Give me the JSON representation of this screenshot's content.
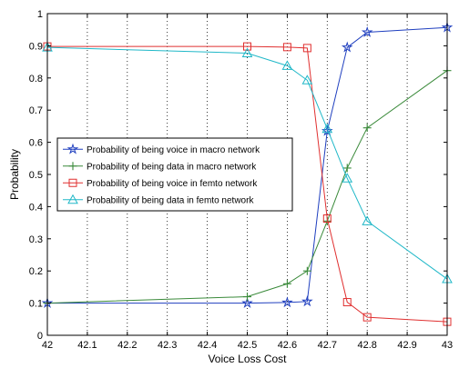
{
  "chart_data": {
    "type": "line",
    "xlabel": "Voice Loss Cost",
    "ylabel": "Probability",
    "xlim": [
      42,
      43
    ],
    "ylim": [
      0,
      1
    ],
    "xticks": [
      "42",
      "42.1",
      "42.2",
      "42.3",
      "42.4",
      "42.5",
      "42.6",
      "42.7",
      "42.8",
      "42.9",
      "43"
    ],
    "yticks": [
      "0",
      "0.1",
      "0.2",
      "0.3",
      "0.4",
      "0.5",
      "0.6",
      "0.7",
      "0.8",
      "0.9",
      "1"
    ],
    "grid": "vertical dotted",
    "legend_position": "center-left",
    "series": [
      {
        "name": "Probability of being voice in macro network",
        "color": "#1f3fbf",
        "marker": "star",
        "x": [
          42,
          42.5,
          42.6,
          42.65,
          42.7,
          42.75,
          42.8,
          43
        ],
        "y": [
          0.1,
          0.1,
          0.102,
          0.105,
          0.635,
          0.895,
          0.942,
          0.957
        ]
      },
      {
        "name": "Probability of being data in macro network",
        "color": "#3a8a3a",
        "marker": "plus",
        "x": [
          42,
          42.5,
          42.6,
          42.65,
          42.7,
          42.75,
          42.8,
          43
        ],
        "y": [
          0.1,
          0.12,
          0.16,
          0.2,
          0.355,
          0.52,
          0.645,
          0.823
        ]
      },
      {
        "name": "Probability of being voice in femto network",
        "color": "#e03030",
        "marker": "square",
        "x": [
          42,
          42.5,
          42.6,
          42.65,
          42.7,
          42.75,
          42.8,
          43
        ],
        "y": [
          0.898,
          0.898,
          0.896,
          0.893,
          0.363,
          0.103,
          0.056,
          0.042
        ]
      },
      {
        "name": "Probability of being data in femto network",
        "color": "#20b8c8",
        "marker": "triangle",
        "x": [
          42,
          42.5,
          42.6,
          42.65,
          42.7,
          42.75,
          42.8,
          43
        ],
        "y": [
          0.895,
          0.877,
          0.838,
          0.793,
          0.642,
          0.488,
          0.355,
          0.175
        ]
      }
    ]
  }
}
